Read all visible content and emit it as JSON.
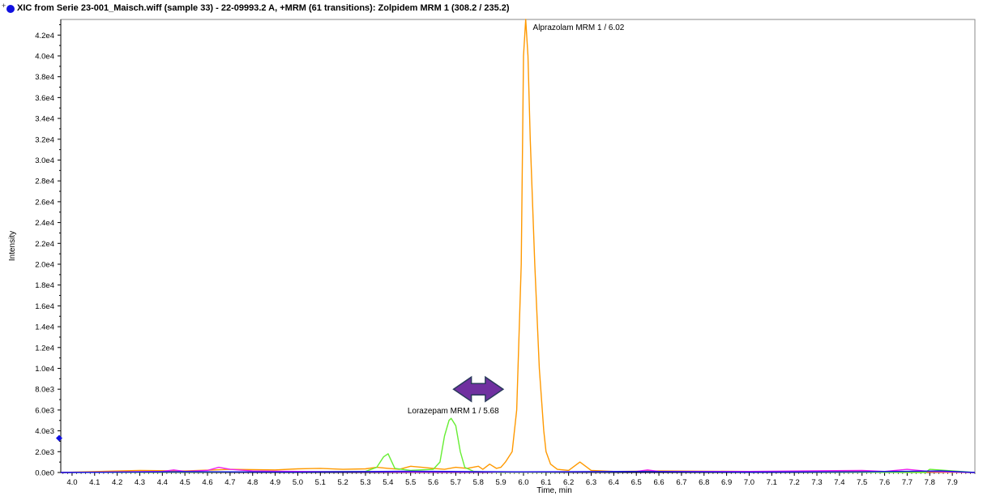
{
  "header": {
    "title": "XIC from Serie 23-001_Maisch.wiff (sample 33) - 22-09993.2 A, +MRM (61 transitions): Zolpidem MRM 1 (308.2 / 235.2)"
  },
  "chart_data": {
    "type": "line",
    "xlabel": "Time, min",
    "ylabel": "Intensity",
    "xlim": [
      3.95,
      8.0
    ],
    "ylim": [
      0,
      43500
    ],
    "x_ticks": [
      "4.0",
      "4.1",
      "4.2",
      "4.3",
      "4.4",
      "4.5",
      "4.6",
      "4.7",
      "4.8",
      "4.9",
      "5.0",
      "5.1",
      "5.2",
      "5.3",
      "5.4",
      "5.5",
      "5.6",
      "5.7",
      "5.8",
      "5.9",
      "6.0",
      "6.1",
      "6.2",
      "6.3",
      "6.4",
      "6.5",
      "6.6",
      "6.7",
      "6.8",
      "6.9",
      "7.0",
      "7.1",
      "7.2",
      "7.3",
      "7.4",
      "7.5",
      "7.6",
      "7.7",
      "7.8",
      "7.9"
    ],
    "y_ticks": [
      {
        "label": "0.0e0",
        "value": 0
      },
      {
        "label": "2.0e3",
        "value": 2000
      },
      {
        "label": "4.0e3",
        "value": 4000
      },
      {
        "label": "6.0e3",
        "value": 6000
      },
      {
        "label": "8.0e3",
        "value": 8000
      },
      {
        "label": "1.0e4",
        "value": 10000
      },
      {
        "label": "1.2e4",
        "value": 12000
      },
      {
        "label": "1.4e4",
        "value": 14000
      },
      {
        "label": "1.6e4",
        "value": 16000
      },
      {
        "label": "1.8e4",
        "value": 18000
      },
      {
        "label": "2.0e4",
        "value": 20000
      },
      {
        "label": "2.2e4",
        "value": 22000
      },
      {
        "label": "2.4e4",
        "value": 24000
      },
      {
        "label": "2.6e4",
        "value": 26000
      },
      {
        "label": "2.8e4",
        "value": 28000
      },
      {
        "label": "3.0e4",
        "value": 30000
      },
      {
        "label": "3.2e4",
        "value": 32000
      },
      {
        "label": "3.4e4",
        "value": 34000
      },
      {
        "label": "3.6e4",
        "value": 36000
      },
      {
        "label": "3.8e4",
        "value": 38000
      },
      {
        "label": "4.0e4",
        "value": 40000
      },
      {
        "label": "4.2e4",
        "value": 42000
      }
    ],
    "series": [
      {
        "color": "#ff9900",
        "x": [
          3.95,
          4.3,
          4.5,
          4.7,
          4.9,
          5.0,
          5.1,
          5.2,
          5.3,
          5.35,
          5.4,
          5.45,
          5.5,
          5.55,
          5.6,
          5.65,
          5.7,
          5.75,
          5.8,
          5.82,
          5.85,
          5.88,
          5.9,
          5.92,
          5.95,
          5.97,
          5.99,
          6.0,
          6.01,
          6.02,
          6.03,
          6.05,
          6.07,
          6.09,
          6.1,
          6.12,
          6.15,
          6.2,
          6.25,
          6.3,
          6.4,
          6.6,
          7.0,
          7.5,
          8.0
        ],
        "y": [
          0,
          200,
          150,
          300,
          250,
          350,
          400,
          300,
          350,
          500,
          400,
          300,
          600,
          500,
          400,
          300,
          500,
          400,
          600,
          300,
          800,
          400,
          500,
          1000,
          2000,
          6000,
          20000,
          40000,
          43500,
          40000,
          32000,
          20000,
          10000,
          4000,
          2000,
          800,
          300,
          200,
          1000,
          200,
          100,
          150,
          100,
          100,
          0
        ]
      },
      {
        "color": "#66ee33",
        "x": [
          3.95,
          5.3,
          5.35,
          5.38,
          5.4,
          5.43,
          5.5,
          5.6,
          5.63,
          5.65,
          5.67,
          5.68,
          5.7,
          5.72,
          5.74,
          5.78,
          5.9,
          6.5,
          7.78,
          7.8,
          8.0
        ],
        "y": [
          0,
          100,
          500,
          1500,
          1800,
          400,
          200,
          300,
          1000,
          3500,
          5000,
          5200,
          4500,
          2000,
          500,
          100,
          0,
          100,
          0,
          300,
          0
        ]
      },
      {
        "color": "#ee22ee",
        "x": [
          3.95,
          4.4,
          4.45,
          4.5,
          4.6,
          4.65,
          4.7,
          4.8,
          5.0,
          5.5,
          6.0,
          6.5,
          6.55,
          6.6,
          7.0,
          7.5,
          7.6,
          7.7,
          7.75,
          7.8,
          8.0
        ],
        "y": [
          0,
          100,
          250,
          100,
          200,
          500,
          300,
          150,
          100,
          50,
          50,
          100,
          250,
          100,
          100,
          200,
          100,
          300,
          200,
          100,
          0
        ]
      },
      {
        "color": "#1010e0",
        "x": [
          3.95,
          4.5,
          5.0,
          5.5,
          6.0,
          6.5,
          7.0,
          7.5,
          7.85,
          8.0
        ],
        "y": [
          0,
          80,
          50,
          120,
          60,
          90,
          40,
          70,
          150,
          0
        ]
      }
    ],
    "annotations": [
      {
        "text": "Alprazolam MRM 1 / 6.02",
        "x": 6.02,
        "y": 43500
      },
      {
        "text": "Lorazepam MRM 1 / 5.68",
        "x": 5.68,
        "y": 5200
      }
    ],
    "arrow": {
      "color": "#7030a0",
      "x_from": 5.69,
      "x_to": 5.91,
      "y": 8000
    }
  }
}
